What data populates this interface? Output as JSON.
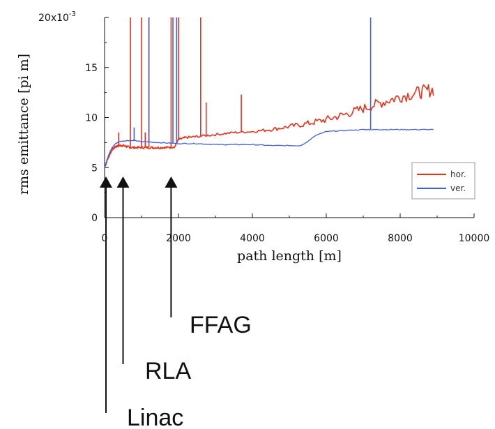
{
  "chart_data": {
    "type": "line",
    "title": "",
    "xlabel": "path length [m]",
    "ylabel": "rms emittance [pi m]",
    "xlim": [
      0,
      10000
    ],
    "ylim": [
      0,
      0.02
    ],
    "x_ticks": [
      "0",
      "2000",
      "4000",
      "6000",
      "8000",
      "10000"
    ],
    "y_ticks": [
      "0",
      "5",
      "10",
      "15",
      "20x10"
    ],
    "y_multiplier_exponent": "-3",
    "grid": false,
    "legend_position": "right",
    "series": [
      {
        "name": "hor.",
        "color": "#e8321e",
        "points": [
          [
            0,
            0.005
          ],
          [
            100,
            0.006
          ],
          [
            200,
            0.0068
          ],
          [
            300,
            0.0071
          ],
          [
            400,
            0.0072
          ],
          [
            500,
            0.0072
          ],
          [
            600,
            0.0071
          ],
          [
            700,
            0.007
          ],
          [
            900,
            0.007
          ],
          [
            1100,
            0.007
          ],
          [
            1300,
            0.007
          ],
          [
            1500,
            0.007
          ],
          [
            1700,
            0.007
          ],
          [
            1900,
            0.0071
          ],
          [
            2000,
            0.0078
          ],
          [
            2200,
            0.008
          ],
          [
            2500,
            0.0081
          ],
          [
            3000,
            0.0083
          ],
          [
            3500,
            0.0085
          ],
          [
            4000,
            0.0086
          ],
          [
            4500,
            0.0088
          ],
          [
            5000,
            0.0091
          ],
          [
            5500,
            0.0094
          ],
          [
            6000,
            0.0098
          ],
          [
            6500,
            0.0103
          ],
          [
            7000,
            0.0109
          ],
          [
            7500,
            0.0115
          ],
          [
            8000,
            0.0121
          ],
          [
            8500,
            0.0125
          ],
          [
            8900,
            0.0128
          ]
        ],
        "spikes": [
          [
            380,
            0.0085
          ],
          [
            700,
            0.02
          ],
          [
            1000,
            0.02
          ],
          [
            1100,
            0.0085
          ],
          [
            1200,
            0.02
          ],
          [
            1800,
            0.02
          ],
          [
            2000,
            0.02
          ],
          [
            2600,
            0.02
          ],
          [
            2750,
            0.0115
          ],
          [
            3700,
            0.0123
          ]
        ]
      },
      {
        "name": "ver.",
        "color": "#4060e0",
        "points": [
          [
            0,
            0.005
          ],
          [
            100,
            0.0062
          ],
          [
            200,
            0.007
          ],
          [
            300,
            0.0074
          ],
          [
            400,
            0.0076
          ],
          [
            600,
            0.0077
          ],
          [
            800,
            0.0077
          ],
          [
            1000,
            0.0076
          ],
          [
            1500,
            0.0075
          ],
          [
            2000,
            0.0074
          ],
          [
            2500,
            0.0074
          ],
          [
            3000,
            0.0073
          ],
          [
            3500,
            0.0073
          ],
          [
            4000,
            0.0073
          ],
          [
            4500,
            0.0072
          ],
          [
            5000,
            0.0072
          ],
          [
            5300,
            0.0072
          ],
          [
            5500,
            0.0076
          ],
          [
            5700,
            0.0082
          ],
          [
            6000,
            0.0086
          ],
          [
            6500,
            0.0087
          ],
          [
            7000,
            0.0088
          ],
          [
            7200,
            0.0088
          ],
          [
            7500,
            0.0088
          ],
          [
            8000,
            0.0088
          ],
          [
            8500,
            0.0088
          ],
          [
            8900,
            0.0088
          ]
        ],
        "spikes": [
          [
            800,
            0.009
          ],
          [
            1200,
            0.02
          ],
          [
            1850,
            0.02
          ],
          [
            1950,
            0.02
          ],
          [
            7200,
            0.02
          ]
        ]
      }
    ],
    "annotations": [
      {
        "label": "Linac",
        "x": 0
      },
      {
        "label": "RLA",
        "x": 500
      },
      {
        "label": "FFAG",
        "x": 1800
      }
    ]
  }
}
